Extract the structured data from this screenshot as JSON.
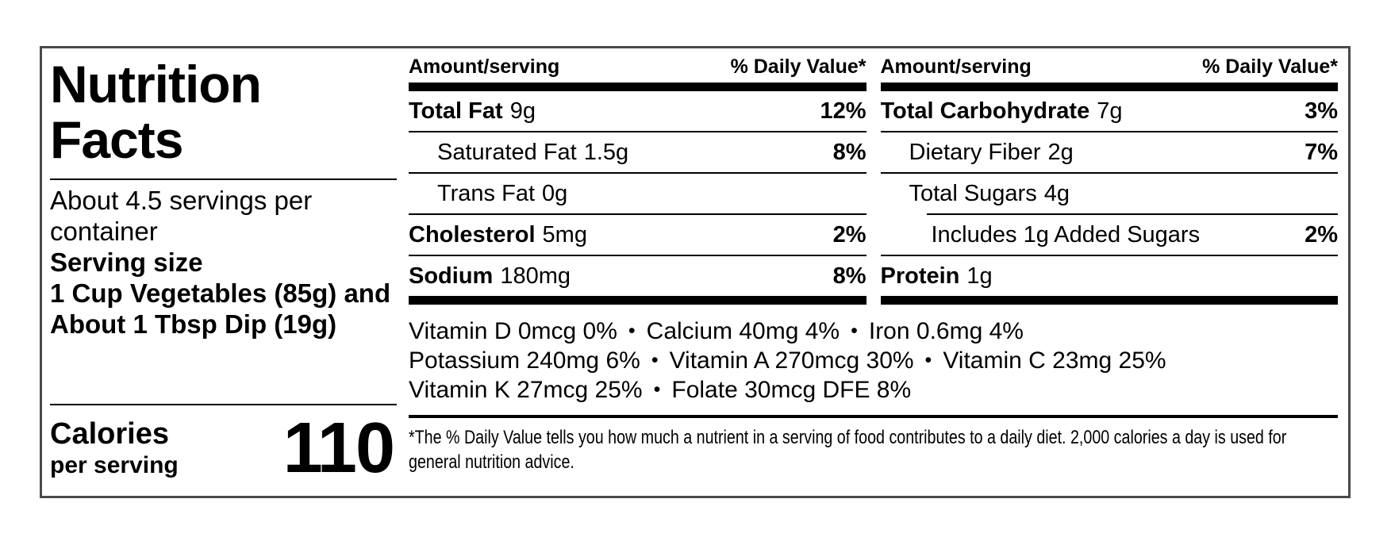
{
  "bullet": "•",
  "label": {
    "title": "Nutrition Facts",
    "servings_per_container": "About 4.5 servings per container",
    "serving_size_label": "Serving size",
    "serving_size_value": "1 Cup Vegetables (85g) and About 1 Tbsp Dip (19g)",
    "calories_label": "Calories",
    "calories_sub": "per serving",
    "calories_value": "110"
  },
  "columns": [
    {
      "header_left": "Amount/serving",
      "header_right": "% Daily Value*",
      "rows": [
        {
          "name": "Total Fat",
          "amount": "9g",
          "dv": "12%"
        },
        {
          "name": "Saturated Fat",
          "amount": "1.5g",
          "dv": "8%"
        },
        {
          "name": "Trans Fat",
          "amount": "0g",
          "dv": ""
        },
        {
          "name": "Cholesterol",
          "amount": "5mg",
          "dv": "2%"
        },
        {
          "name": "Sodium",
          "amount": "180mg",
          "dv": "8%"
        }
      ]
    },
    {
      "header_left": "Amount/serving",
      "header_right": "% Daily Value*",
      "rows": [
        {
          "name": "Total Carbohydrate",
          "amount": "7g",
          "dv": "3%"
        },
        {
          "name": "Dietary Fiber",
          "amount": "2g",
          "dv": "7%"
        },
        {
          "name": "Total Sugars",
          "amount": "4g",
          "dv": ""
        },
        {
          "name": "Includes 1g Added Sugars",
          "amount": "",
          "dv": "2%"
        },
        {
          "name": "Protein",
          "amount": "1g",
          "dv": ""
        }
      ]
    }
  ],
  "micronutrients": [
    [
      "Vitamin D 0mcg 0%",
      "Calcium 40mg 4%",
      "Iron 0.6mg 4%"
    ],
    [
      "Potassium 240mg 6%",
      "Vitamin A 270mcg 30%",
      "Vitamin C 23mg 25%"
    ],
    [
      "Vitamin K 27mcg 25%",
      "Folate 30mcg DFE 8%"
    ]
  ],
  "footnote": "*The % Daily Value tells you how much a nutrient in a serving of food contributes to a daily diet. 2,000 calories a day is used for general nutrition advice."
}
